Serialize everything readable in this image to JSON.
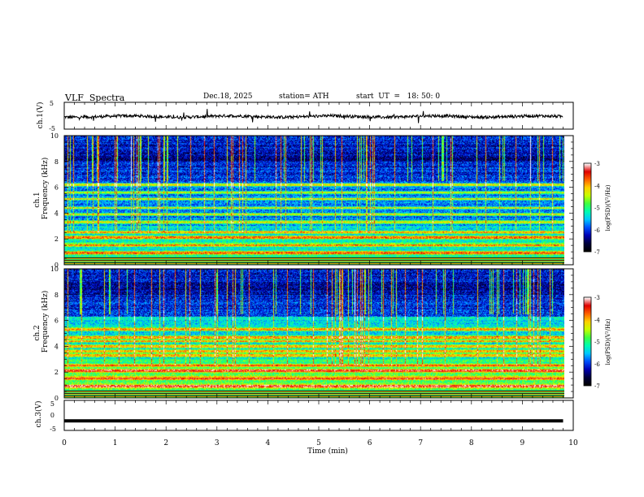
{
  "header": {
    "title": "VLF  Spectra",
    "date": "Dec.18, 2025",
    "station": "station= ATH",
    "start_ut": "start  UT  =   18: 50: 0"
  },
  "chart_data": [
    {
      "type": "line",
      "panel": "ch1-waveform",
      "ylabel": "ch.1(V)",
      "ylim": [
        -5,
        5
      ],
      "yticks": [
        "5",
        "-5"
      ],
      "x_range_min": [
        0,
        9.8
      ],
      "description_level_v": -0.3
    },
    {
      "type": "heatmap",
      "panel": "ch1-spectrogram",
      "ylabel": [
        "ch.1",
        "Frequency (kHz)"
      ],
      "ylim": [
        0,
        10
      ],
      "yticks": [
        "0",
        "2",
        "4",
        "6",
        "8",
        "10"
      ],
      "x_range_min": [
        0,
        9.8
      ],
      "colorbar": {
        "label": "log(PSD)(V²/Hz)",
        "range": [
          -7,
          -3
        ],
        "ticks": [
          "-3",
          "-4",
          "-5",
          "-6",
          "-7"
        ]
      },
      "bands_khz": [
        0.3,
        0.9,
        1.5,
        2.1,
        2.5,
        3.3,
        3.9,
        4.4,
        5.1,
        5.6,
        6.2
      ]
    },
    {
      "type": "heatmap",
      "panel": "ch2-spectrogram",
      "ylabel": [
        "ch.2",
        "Frequency (kHz)"
      ],
      "ylim": [
        0,
        10
      ],
      "yticks": [
        "0",
        "2",
        "4",
        "6",
        "8",
        "10"
      ],
      "x_range_min": [
        0,
        9.8
      ],
      "colorbar": {
        "label": "log(PSD)(V²/Hz)",
        "range": [
          -7,
          -3
        ],
        "ticks": [
          "-3",
          "-4",
          "-5",
          "-6",
          "-7"
        ]
      },
      "bands_khz": [
        0.3,
        0.9,
        1.5,
        2.1,
        2.5,
        3.3,
        3.6,
        4.0,
        4.4,
        4.7,
        5.3
      ]
    },
    {
      "type": "line",
      "panel": "ch3-waveform",
      "ylabel": "ch.3(V)",
      "ylim": [
        -5,
        5
      ],
      "yticks": [
        "5",
        "0",
        "-5"
      ],
      "x_range_min": [
        0,
        9.8
      ],
      "level_v": -1.8
    }
  ],
  "xaxis": {
    "label": "Time  (min)",
    "range": [
      0,
      10
    ],
    "ticks": [
      "0",
      "1",
      "2",
      "3",
      "4",
      "5",
      "6",
      "7",
      "8",
      "9",
      "10"
    ]
  },
  "colors": {
    "colormap": [
      "#000000",
      "#00003c",
      "#0000b4",
      "#0050ff",
      "#00c8ff",
      "#00ffb0",
      "#40ff40",
      "#c8ff00",
      "#ffd000",
      "#ff6000",
      "#e00000",
      "#ffffff"
    ]
  }
}
